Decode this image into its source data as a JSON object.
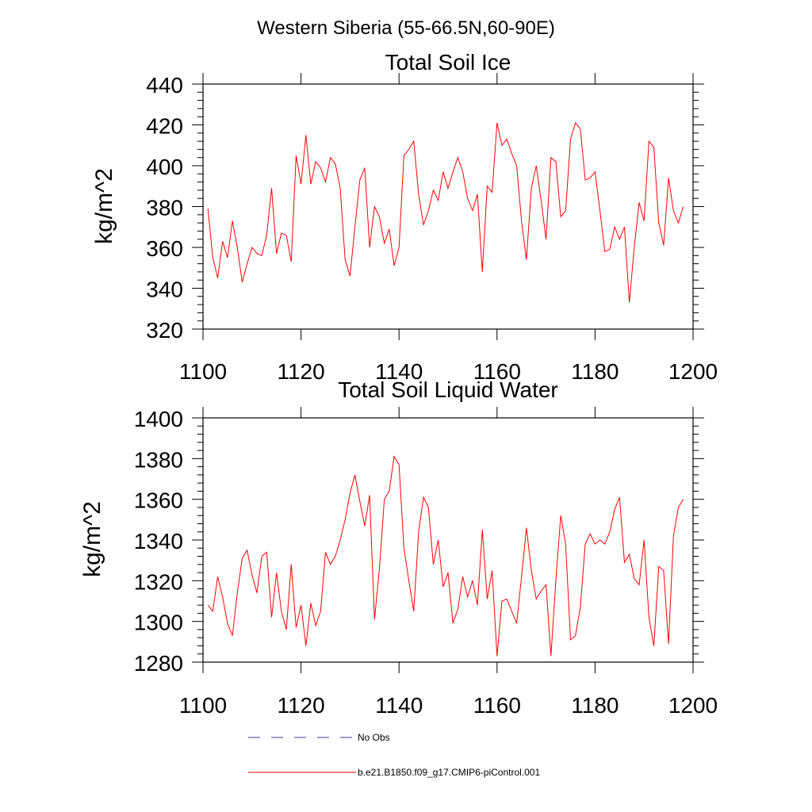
{
  "figure_title": "Western Siberia (55-66.5N,60-90E)",
  "colors": {
    "model": "#ff0000",
    "obs": "#3b3b8a",
    "axis": "#000000",
    "background": "#ffffff"
  },
  "legend": [
    {
      "label": "No Obs",
      "style": "dashed",
      "color": "#3b3b8a"
    },
    {
      "label": "b.e21.B1850.f09_g17.CMIP6-piControl.001",
      "style": "solid",
      "color": "#ff0000"
    }
  ],
  "chart_data": [
    {
      "type": "line",
      "title": "Total Soil Ice",
      "xlabel": "",
      "ylabel": "kg/m^2",
      "xlim": [
        1100,
        1200
      ],
      "ylim": [
        320,
        440
      ],
      "xticks": [
        1100,
        1120,
        1140,
        1160,
        1180,
        1200
      ],
      "yticks": [
        320,
        340,
        360,
        380,
        400,
        420,
        440
      ],
      "x_start": 1101,
      "x_step": 1,
      "series": [
        {
          "name": "b.e21.B1850.f09_g17.CMIP6-piControl.001",
          "color": "#ff0000",
          "values": [
            379,
            355,
            345,
            363,
            355,
            373,
            360,
            343,
            352,
            360,
            357,
            356,
            366,
            389,
            357,
            367,
            366,
            353,
            405,
            391,
            415,
            391,
            402,
            399,
            392,
            404,
            401,
            389,
            354,
            346,
            370,
            393,
            399,
            360,
            380,
            375,
            362,
            369,
            351,
            360,
            405,
            408,
            412,
            386,
            371,
            378,
            388,
            383,
            397,
            389,
            397,
            404,
            397,
            384,
            378,
            386,
            348,
            390,
            387,
            421,
            410,
            413,
            406,
            400,
            373,
            354,
            389,
            400,
            383,
            364,
            404,
            402,
            375,
            378,
            413,
            421,
            418,
            393,
            394,
            397,
            378,
            358,
            359,
            370,
            364,
            370,
            333,
            360,
            382,
            373,
            412,
            409,
            372,
            361,
            394,
            378,
            372,
            380
          ]
        }
      ]
    },
    {
      "type": "line",
      "title": "Total Soil Liquid Water",
      "xlabel": "",
      "ylabel": "kg/m^2",
      "xlim": [
        1100,
        1200
      ],
      "ylim": [
        1280,
        1400
      ],
      "xticks": [
        1100,
        1120,
        1140,
        1160,
        1180,
        1200
      ],
      "yticks": [
        1280,
        1300,
        1320,
        1340,
        1360,
        1380,
        1400
      ],
      "x_start": 1101,
      "x_step": 1,
      "series": [
        {
          "name": "b.e21.B1850.f09_g17.CMIP6-piControl.001",
          "color": "#ff0000",
          "values": [
            1308,
            1305,
            1322,
            1312,
            1299,
            1293,
            1314,
            1331,
            1335,
            1323,
            1314,
            1332,
            1334,
            1302,
            1324,
            1305,
            1296,
            1328,
            1297,
            1308,
            1288,
            1309,
            1298,
            1305,
            1334,
            1328,
            1332,
            1340,
            1350,
            1363,
            1372,
            1359,
            1347,
            1362,
            1301,
            1326,
            1360,
            1364,
            1381,
            1377,
            1336,
            1320,
            1305,
            1344,
            1361,
            1356,
            1328,
            1340,
            1317,
            1324,
            1299,
            1306,
            1322,
            1312,
            1320,
            1308,
            1345,
            1311,
            1325,
            1283,
            1310,
            1311,
            1305,
            1299,
            1322,
            1346,
            1325,
            1311,
            1315,
            1318,
            1283,
            1320,
            1352,
            1338,
            1291,
            1293,
            1307,
            1338,
            1343,
            1338,
            1340,
            1338,
            1344,
            1355,
            1361,
            1329,
            1333,
            1321,
            1318,
            1340,
            1302,
            1288,
            1327,
            1325,
            1289,
            1342,
            1356,
            1360
          ]
        }
      ]
    }
  ]
}
